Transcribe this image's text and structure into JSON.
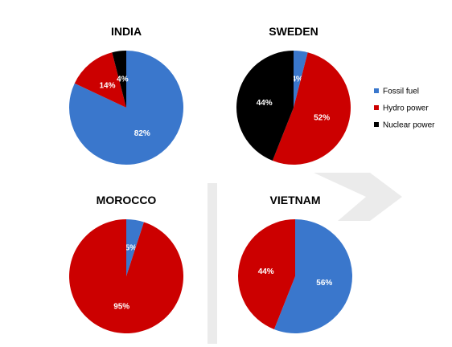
{
  "legend": {
    "items": [
      {
        "label": "Fossil fuel",
        "color": "#3a77cc"
      },
      {
        "label": "Hydro power",
        "color": "#cc0000"
      },
      {
        "label": "Nuclear power",
        "color": "#000000"
      }
    ]
  },
  "chart_data": [
    {
      "type": "pie",
      "title": "INDIA",
      "slices": [
        {
          "label": "Fossil fuel",
          "value": 82,
          "text": "82%"
        },
        {
          "label": "Hydro power",
          "value": 14,
          "text": "14%"
        },
        {
          "label": "Nuclear power",
          "value": 4,
          "text": "4%"
        }
      ]
    },
    {
      "type": "pie",
      "title": "SWEDEN",
      "slices": [
        {
          "label": "Fossil fuel",
          "value": 4,
          "text": "4%"
        },
        {
          "label": "Hydro power",
          "value": 52,
          "text": "52%"
        },
        {
          "label": "Nuclear power",
          "value": 44,
          "text": "44%"
        }
      ]
    },
    {
      "type": "pie",
      "title": "MOROCCO",
      "slices": [
        {
          "label": "Fossil fuel",
          "value": 5,
          "text": "5%"
        },
        {
          "label": "Hydro power",
          "value": 95,
          "text": "95%"
        }
      ]
    },
    {
      "type": "pie",
      "title": "VIETNAM",
      "slices": [
        {
          "label": "Fossil fuel",
          "value": 56,
          "text": "56%"
        },
        {
          "label": "Hydro power",
          "value": 44,
          "text": "44%"
        }
      ]
    }
  ]
}
